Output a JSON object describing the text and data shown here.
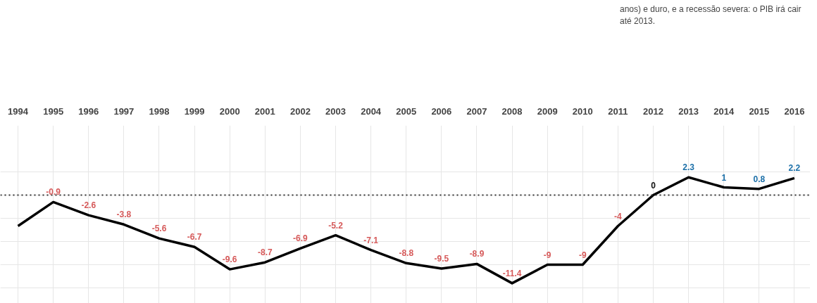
{
  "chart_data": {
    "type": "line",
    "categories": [
      "1994",
      "1995",
      "1996",
      "1997",
      "1998",
      "1999",
      "2000",
      "2001",
      "2002",
      "2003",
      "2004",
      "2005",
      "2006",
      "2007",
      "2008",
      "2009",
      "2010",
      "2011",
      "2012",
      "2013",
      "2014",
      "2015",
      "2016"
    ],
    "series": [
      {
        "color": "#000000",
        "values": [
          -4,
          -0.9,
          -2.6,
          -3.8,
          -5.6,
          -6.7,
          -9.6,
          -8.7,
          -6.9,
          -5.2,
          -7.1,
          -8.8,
          -9.5,
          -8.9,
          -11.4,
          -9,
          -9,
          -4,
          0,
          2.3,
          1,
          0.8,
          2.2
        ],
        "value_labels": [
          null,
          "-0.9",
          "-2.6",
          "-3.8",
          "-5.6",
          "-6.7",
          "-9.6",
          "-8.7",
          "-6.9",
          "-5.2",
          "-7.1",
          "-8.8",
          "-9.5",
          "-8.9",
          "-11.4",
          "-9",
          "-9",
          "-4",
          "0",
          "2.3",
          "1",
          "0.8",
          "2.2"
        ]
      }
    ],
    "ylim": [
      -14,
      9
    ],
    "yticks": [
      {
        "value": 3,
        "label": null
      },
      {
        "value": 0,
        "label": null
      },
      {
        "value": -3,
        "label": null
      },
      {
        "value": -6,
        "label": null
      },
      {
        "value": -9,
        "label": null
      },
      {
        "value": -12,
        "label": null
      }
    ],
    "tick_labels": "x",
    "grid": true,
    "marker": "none",
    "line_style": "solid",
    "ref_lines": [
      {
        "axis": "y",
        "value": 0,
        "color": "#333333",
        "line_style": "dotted"
      }
    ],
    "annotations": [
      "anos) e duro, e a recessão severa: o PIB irá cair até 2013."
    ]
  }
}
